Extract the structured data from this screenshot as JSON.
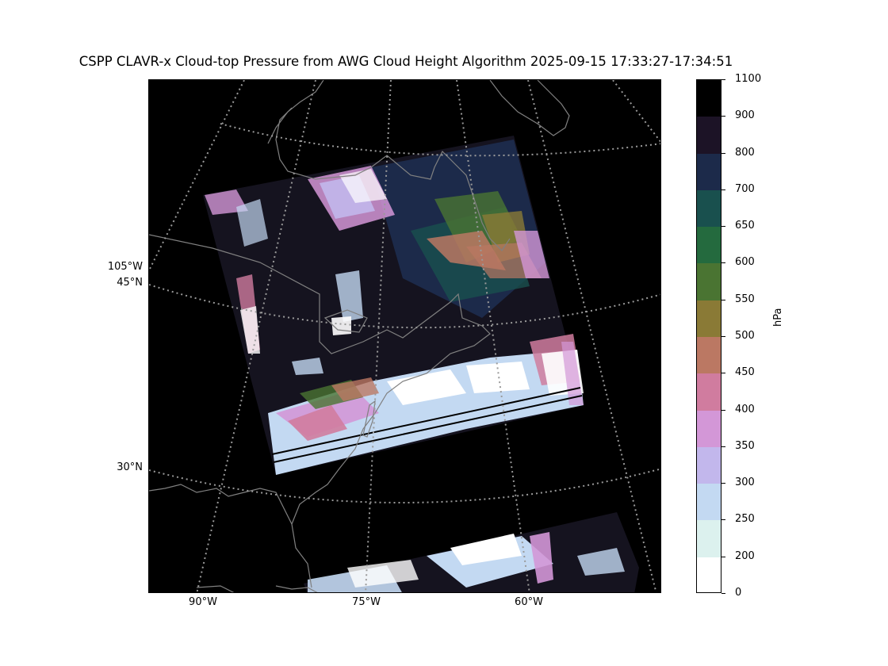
{
  "title": "CSPP CLAVR-x Cloud-top Pressure from AWG Cloud Height Algorithm 2025-09-15 17:33:27-17:34:51",
  "map": {
    "lat_labels": [
      {
        "text": "105°W",
        "y": 337
      },
      {
        "text": "45°N",
        "y": 357
      },
      {
        "text": "30°N",
        "y": 590
      }
    ],
    "lon_labels": [
      {
        "text": "90°W",
        "x": 256
      },
      {
        "text": "75°W",
        "x": 462
      },
      {
        "text": "60°W",
        "x": 667
      }
    ],
    "colors": {
      "background": "#000000",
      "coastline": "#808080",
      "graticule": "#9a9a9a"
    }
  },
  "colorbar": {
    "unit": "hPa",
    "ticks": [
      "1100",
      "900",
      "800",
      "700",
      "650",
      "600",
      "550",
      "500",
      "450",
      "400",
      "350",
      "300",
      "250",
      "200",
      "0"
    ],
    "colors": [
      "#000000",
      "#1c1326",
      "#1c2a4a",
      "#19504e",
      "#246a3e",
      "#4a7432",
      "#8a7a36",
      "#bb7863",
      "#d07c9f",
      "#d397d7",
      "#c2b7ec",
      "#c3d9f2",
      "#dcf1ee",
      "#ffffff"
    ]
  }
}
